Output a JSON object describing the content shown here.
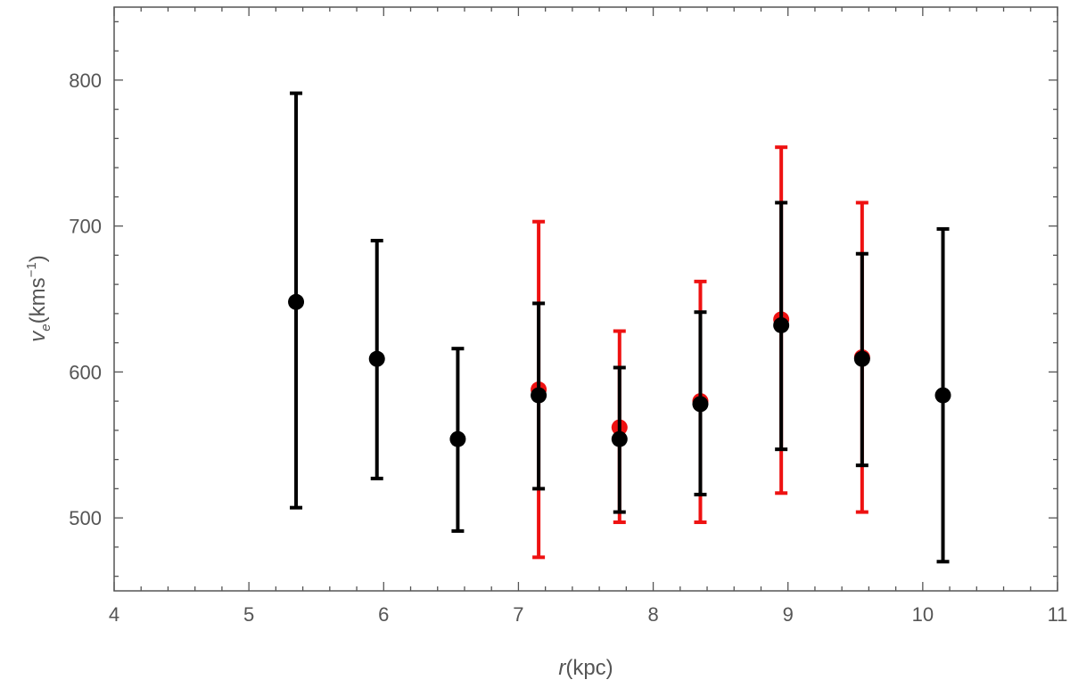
{
  "chart_data": {
    "type": "scatter",
    "xlabel": {
      "var": "r",
      "unit": "(kpc)"
    },
    "ylabel": {
      "var": "v",
      "sub": "e",
      "unit_pre": "(kms",
      "sup": "−1",
      "unit_post": ")"
    },
    "xlim": [
      4,
      11
    ],
    "ylim": [
      450,
      850
    ],
    "xticks": [
      4,
      5,
      6,
      7,
      8,
      9,
      10,
      11
    ],
    "yticks": [
      500,
      600,
      700,
      800
    ],
    "frame": true,
    "grid": false,
    "series": [
      {
        "color": "#ee1111",
        "points": [
          {
            "x": 7.15,
            "y": 588,
            "low": 473,
            "high": 703
          },
          {
            "x": 7.75,
            "y": 562,
            "low": 497,
            "high": 628
          },
          {
            "x": 8.35,
            "y": 580,
            "low": 497,
            "high": 662
          },
          {
            "x": 8.95,
            "y": 636,
            "low": 517,
            "high": 754
          },
          {
            "x": 9.55,
            "y": 610,
            "low": 504,
            "high": 716
          }
        ]
      },
      {
        "color": "#000000",
        "points": [
          {
            "x": 5.35,
            "y": 648,
            "low": 507,
            "high": 791
          },
          {
            "x": 5.95,
            "y": 609,
            "low": 527,
            "high": 690
          },
          {
            "x": 6.55,
            "y": 554,
            "low": 491,
            "high": 616
          },
          {
            "x": 7.15,
            "y": 584,
            "low": 520,
            "high": 647
          },
          {
            "x": 7.75,
            "y": 554,
            "low": 504,
            "high": 603
          },
          {
            "x": 8.35,
            "y": 578,
            "low": 516,
            "high": 641
          },
          {
            "x": 8.95,
            "y": 632,
            "low": 547,
            "high": 716
          },
          {
            "x": 9.55,
            "y": 609,
            "low": 536,
            "high": 681
          },
          {
            "x": 10.15,
            "y": 584,
            "low": 470,
            "high": 698
          }
        ]
      }
    ]
  }
}
